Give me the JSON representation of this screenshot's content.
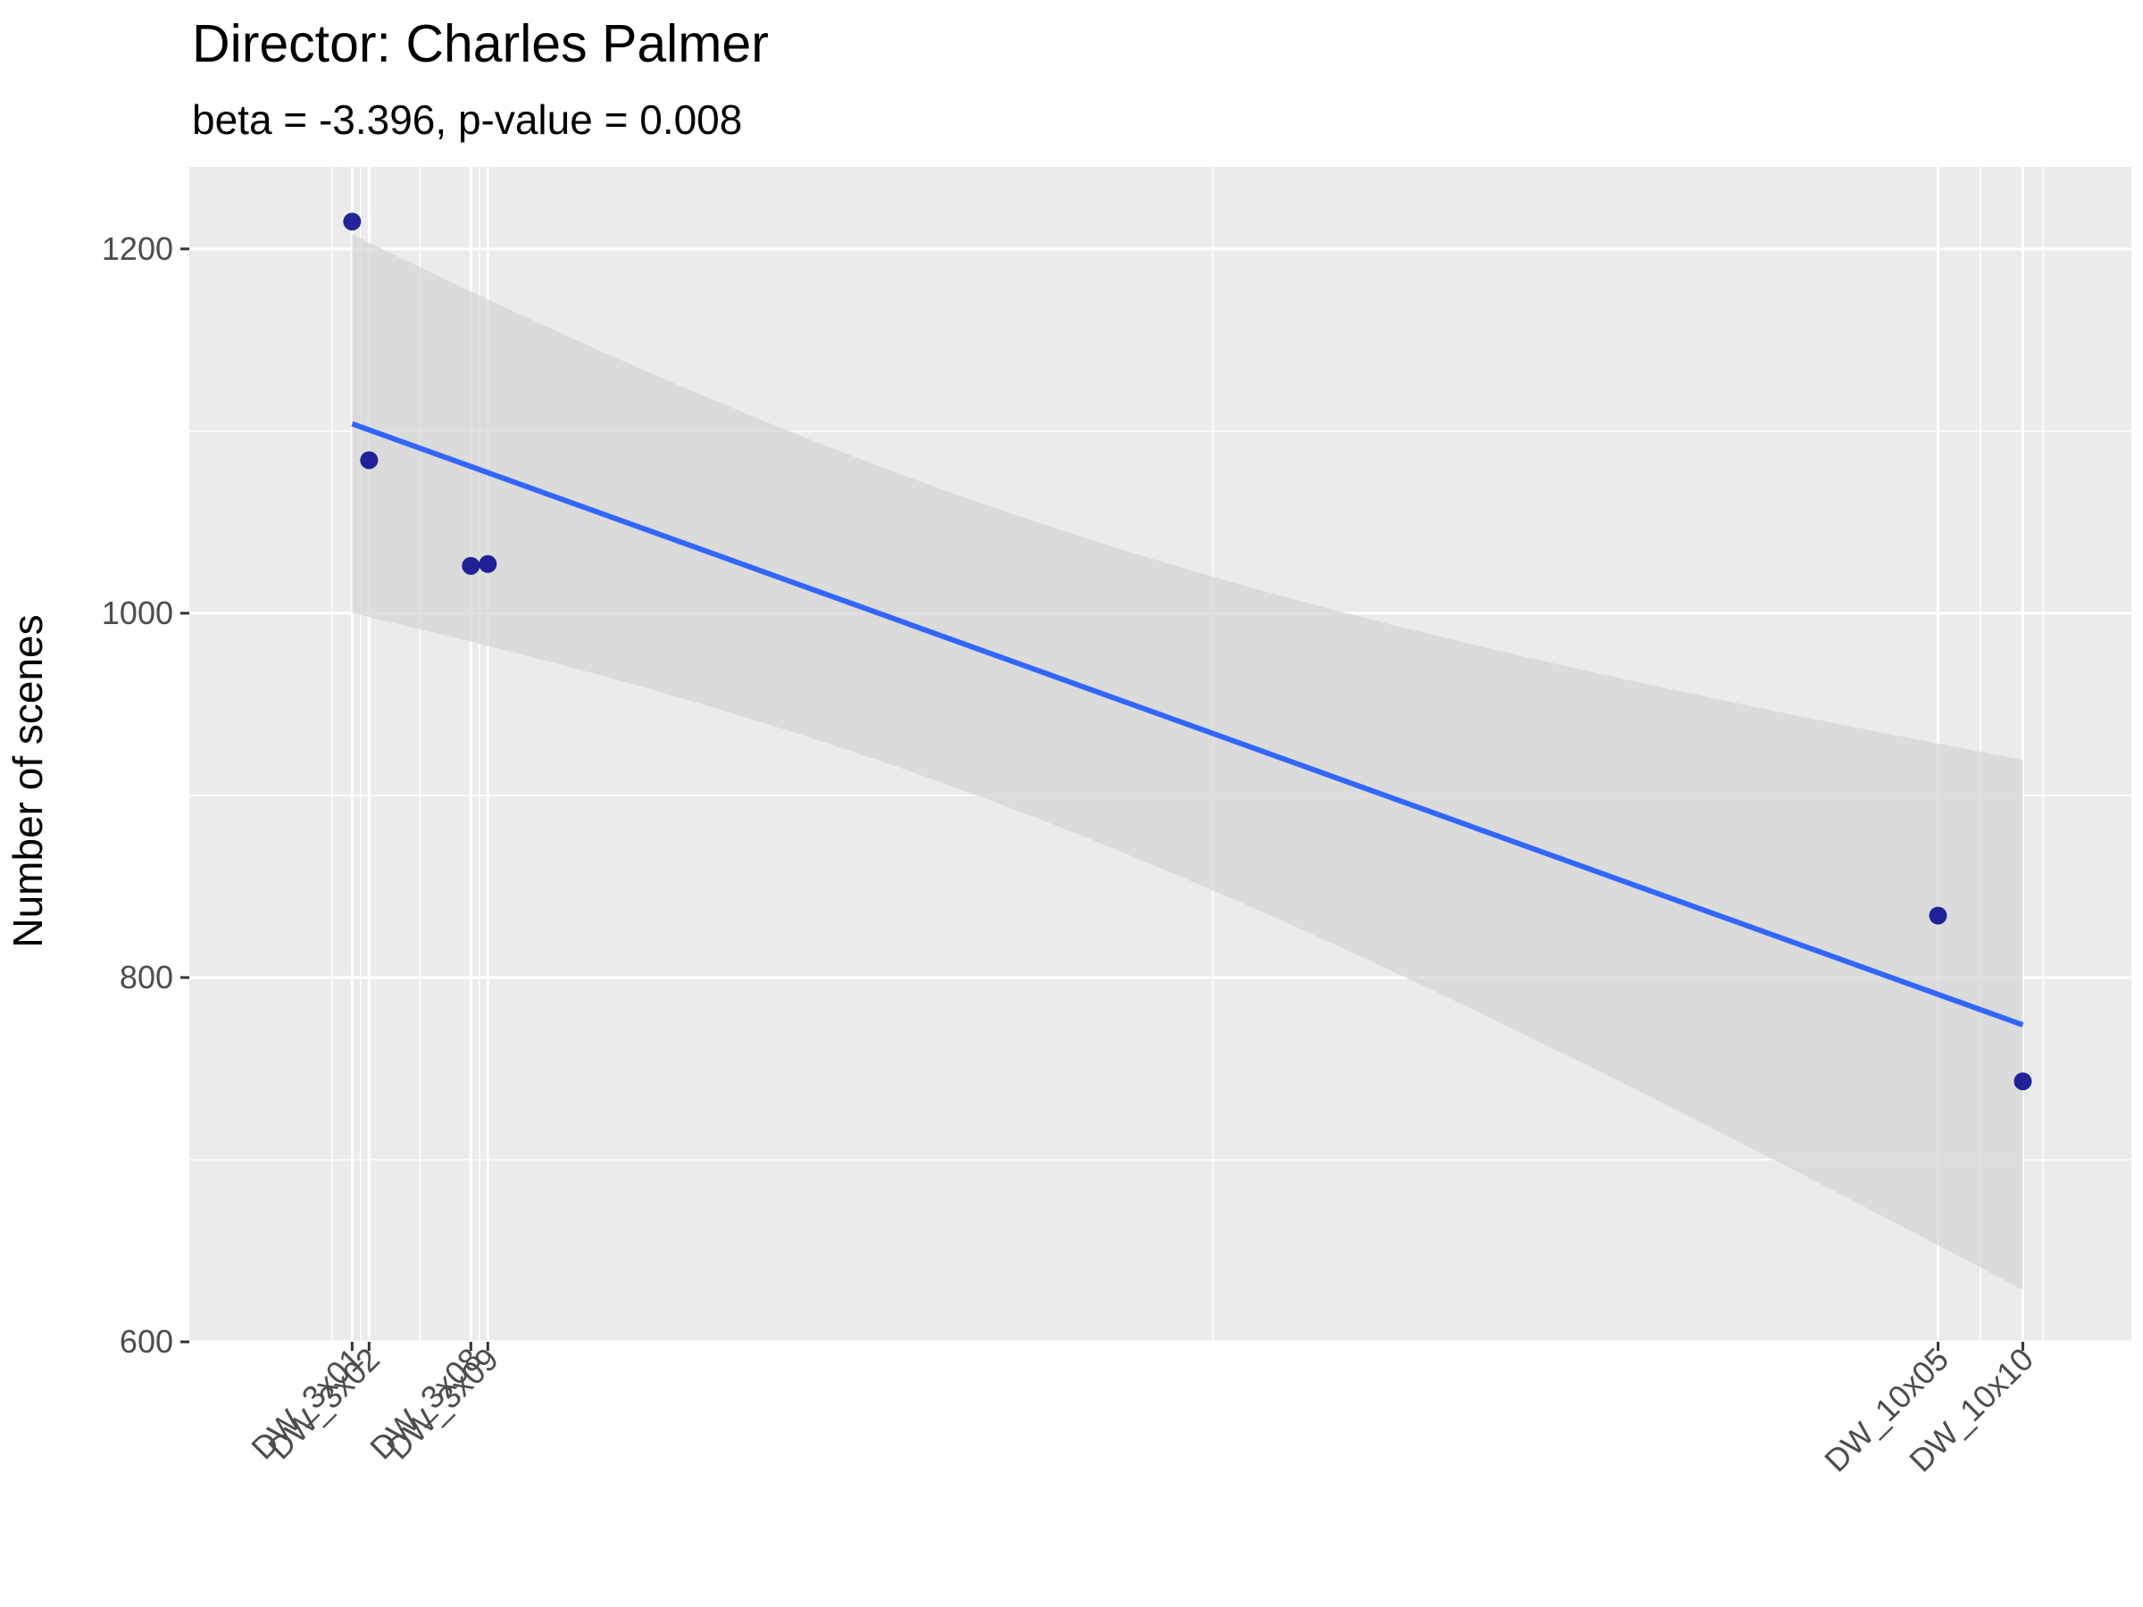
{
  "chart_data": {
    "type": "scatter",
    "title": "Director: Charles Palmer",
    "subtitle": "beta = -3.396, p-value = 0.008",
    "xlabel": "",
    "ylabel": "Number of scenes",
    "y_ticks": [
      600,
      800,
      1000,
      1200
    ],
    "ylim": [
      600,
      1245
    ],
    "points": [
      {
        "label": "DW_3x01",
        "x": 0.0,
        "y": 1215
      },
      {
        "label": "DW_3x02",
        "x": 1.0,
        "y": 1084
      },
      {
        "label": "DW_3x08",
        "x": 7.0,
        "y": 1026
      },
      {
        "label": "DW_3x09",
        "x": 8.0,
        "y": 1027
      },
      {
        "label": "DW_10x05",
        "x": 93.5,
        "y": 834
      },
      {
        "label": "DW_10x10",
        "x": 98.5,
        "y": 743
      }
    ],
    "x_tick_labels": [
      "DW_3x01",
      "DW_3x02",
      "DW_3x08",
      "DW_3x09",
      "DW_10x05",
      "DW_10x10"
    ],
    "regression": {
      "x": [
        0.0,
        98.5
      ],
      "y": [
        1104,
        774
      ],
      "ci_lower": [
        1000,
        629
      ],
      "ci_upper": [
        1208,
        920
      ]
    },
    "grid": true,
    "legend": "none",
    "colors": {
      "panel": "#ebebeb",
      "grid": "#ffffff",
      "point": "#00008b",
      "line": "#3366ff",
      "ribbon": "#d6d6d6",
      "tick_text": "#4d4d4d"
    }
  }
}
